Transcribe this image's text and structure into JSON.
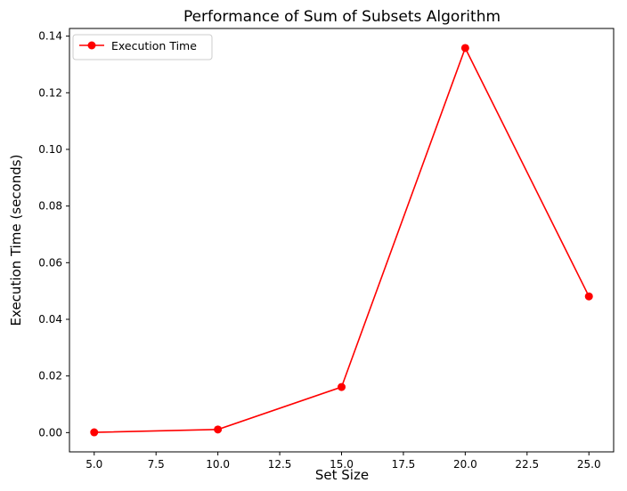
{
  "chart_data": {
    "type": "line",
    "title": "Performance of Sum of Subsets Algorithm",
    "xlabel": "Set Size",
    "ylabel": "Execution Time (seconds)",
    "x": [
      5,
      10,
      15,
      20,
      25
    ],
    "series": [
      {
        "name": "Execution Time",
        "values": [
          0.0001,
          0.0011,
          0.0161,
          0.1358,
          0.0481
        ],
        "color": "#ff0000",
        "marker": "circle"
      }
    ],
    "xlim": [
      4.0,
      26.0
    ],
    "ylim": [
      -0.0068,
      0.1427
    ],
    "xticks": [
      5.0,
      7.5,
      10.0,
      12.5,
      15.0,
      17.5,
      20.0,
      22.5,
      25.0
    ],
    "xtick_labels": [
      "5.0",
      "7.5",
      "10.0",
      "12.5",
      "15.0",
      "17.5",
      "20.0",
      "22.5",
      "25.0"
    ],
    "yticks": [
      0.0,
      0.02,
      0.04,
      0.06,
      0.08,
      0.1,
      0.12,
      0.14
    ],
    "ytick_labels": [
      "0.00",
      "0.02",
      "0.04",
      "0.06",
      "0.08",
      "0.10",
      "0.12",
      "0.14"
    ],
    "grid": false,
    "legend": "top-left"
  }
}
